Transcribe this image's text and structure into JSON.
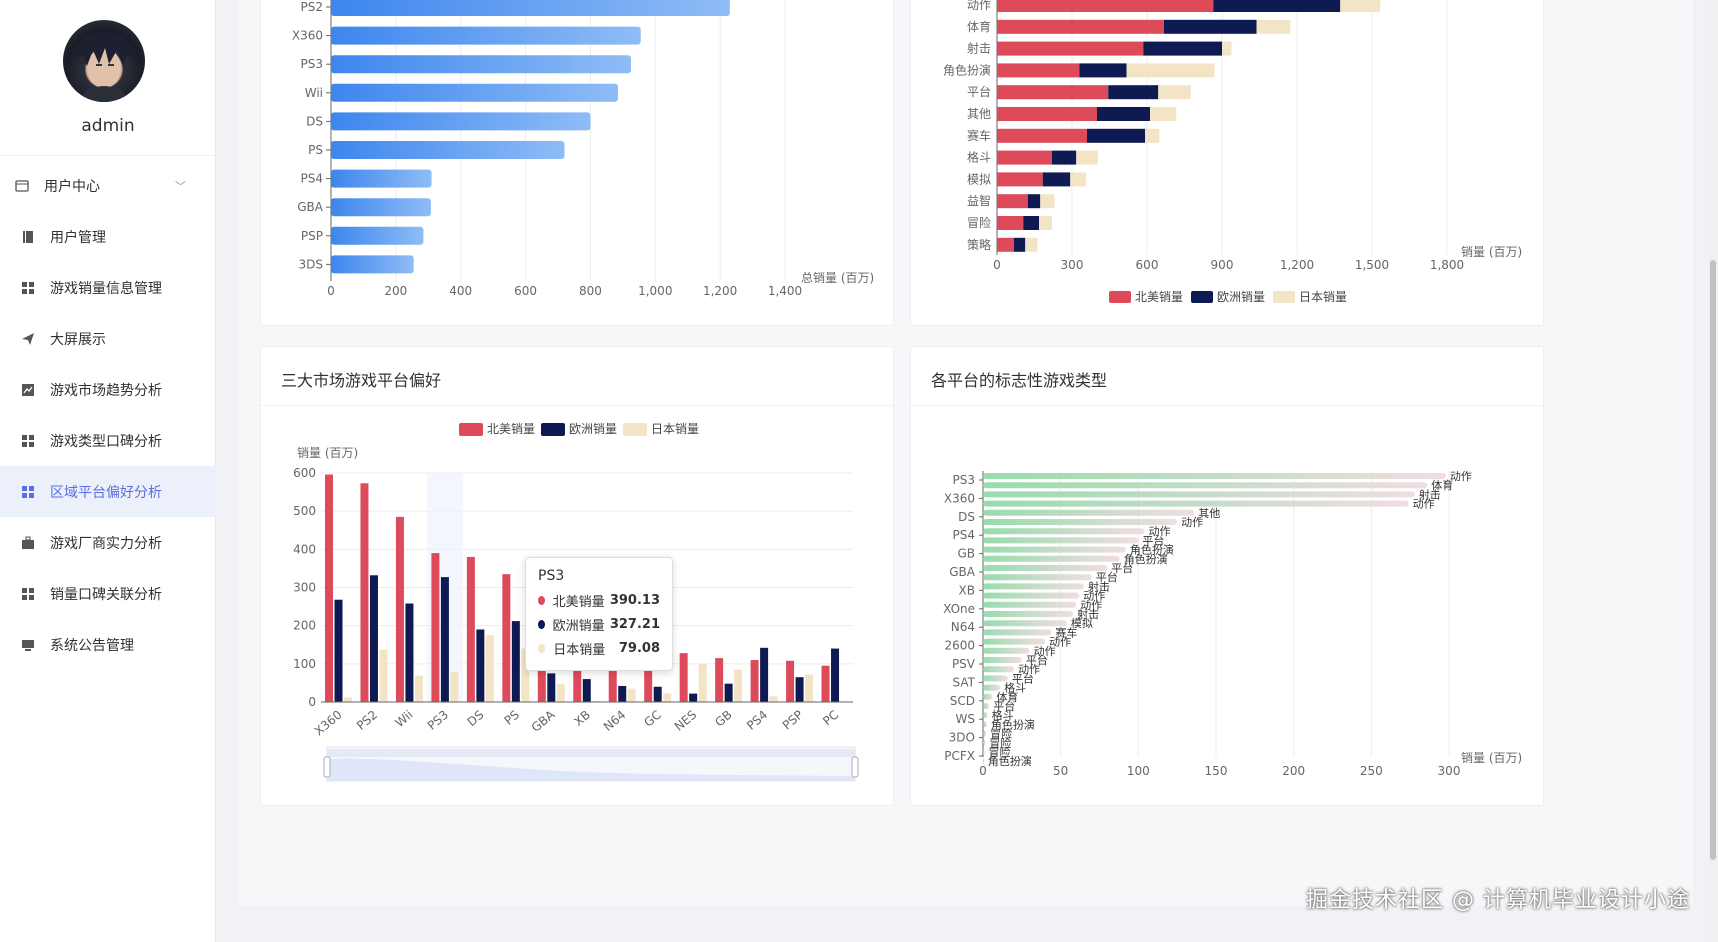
{
  "user": {
    "name": "admin"
  },
  "menu": [
    {
      "name": "user-center",
      "label": "用户中心",
      "icon": "card-icon",
      "sub": true
    },
    {
      "name": "user-manage",
      "label": "用户管理",
      "icon": "book-icon"
    },
    {
      "name": "sales-info",
      "label": "游戏销量信息管理",
      "icon": "grid-icon"
    },
    {
      "name": "big-screen",
      "label": "大屏展示",
      "icon": "send-icon"
    },
    {
      "name": "trend",
      "label": "游戏市场趋势分析",
      "icon": "line-chart-icon"
    },
    {
      "name": "genre-rating",
      "label": "游戏类型口碑分析",
      "icon": "grid-icon"
    },
    {
      "name": "region-platform",
      "label": "区域平台偏好分析",
      "icon": "grid-icon",
      "active": true
    },
    {
      "name": "publisher",
      "label": "游戏厂商实力分析",
      "icon": "briefcase-icon"
    },
    {
      "name": "sales-rating",
      "label": "销量口碑关联分析",
      "icon": "grid-icon"
    },
    {
      "name": "notice",
      "label": "系统公告管理",
      "icon": "monitor-icon"
    }
  ],
  "colors": {
    "na": "#dd4b5b",
    "eu": "#0e1b52",
    "jp": "#f3e4c5",
    "bar_start": "#3d86ee",
    "bar_end": "#8fbcf6"
  },
  "chart_data": [
    {
      "type": "bar",
      "orientation": "horizontal",
      "categories": [
        "PS2",
        "X360",
        "PS3",
        "Wii",
        "DS",
        "PS",
        "PS4",
        "GBA",
        "PSP",
        "3DS"
      ],
      "values": [
        1230,
        955,
        925,
        885,
        800,
        720,
        310,
        308,
        285,
        255
      ],
      "xlabel": "总销量 (百万)",
      "xticks": [
        0,
        200,
        400,
        600,
        800,
        1000,
        1200,
        1400
      ],
      "xtick_labels": [
        "0",
        "200",
        "400",
        "600",
        "800",
        "1,000",
        "1,200",
        "1,400"
      ],
      "xlim": [
        0,
        1400
      ]
    },
    {
      "type": "bar",
      "orientation": "horizontal",
      "stacked": true,
      "categories": [
        "动作",
        "体育",
        "射击",
        "角色扮演",
        "平台",
        "其他",
        "赛车",
        "格斗",
        "模拟",
        "益智",
        "冒险",
        "策略"
      ],
      "series": [
        {
          "name": "北美销量",
          "values": [
            865,
            668,
            585,
            330,
            445,
            400,
            360,
            220,
            183,
            123,
            105,
            68
          ]
        },
        {
          "name": "欧洲销量",
          "values": [
            508,
            370,
            315,
            188,
            200,
            212,
            232,
            97,
            110,
            50,
            63,
            45
          ]
        },
        {
          "name": "日本销量",
          "values": [
            160,
            135,
            38,
            352,
            130,
            105,
            57,
            87,
            63,
            57,
            52,
            49
          ]
        }
      ],
      "xlabel": "销量 (百万)",
      "xticks": [
        0,
        300,
        600,
        900,
        1200,
        1500,
        1800
      ],
      "xtick_labels": [
        "0",
        "300",
        "600",
        "900",
        "1,200",
        "1,500",
        "1,800"
      ],
      "xlim": [
        0,
        1800
      ],
      "legend": "bottom"
    },
    {
      "type": "bar",
      "title": "三大市场游戏平台偏好",
      "categories": [
        "X360",
        "PS2",
        "Wii",
        "PS3",
        "DS",
        "PS",
        "GBA",
        "XB",
        "N64",
        "GC",
        "NES",
        "GB",
        "PS4",
        "PSP",
        "PC"
      ],
      "series": [
        {
          "name": "北美销量",
          "values": [
            596,
            573,
            485,
            390.13,
            380,
            335,
            185,
            185,
            140,
            130,
            128,
            115,
            110,
            108,
            95
          ]
        },
        {
          "name": "欧洲销量",
          "values": [
            268,
            332,
            258,
            327.21,
            190,
            212,
            75,
            60,
            42,
            40,
            22,
            48,
            142,
            65,
            140
          ]
        },
        {
          "name": "日本销量",
          "values": [
            12,
            137,
            69,
            79.08,
            175,
            140,
            48,
            3,
            35,
            22,
            100,
            85,
            15,
            72,
            0
          ]
        }
      ],
      "ylabel": "销量 (百万)",
      "yticks": [
        0,
        100,
        200,
        300,
        400,
        500,
        600
      ],
      "ylim": [
        0,
        600
      ],
      "legend": "top",
      "tooltip": {
        "title": "PS3",
        "rows": [
          {
            "name": "北美销量",
            "value": "390.13"
          },
          {
            "name": "欧洲销量",
            "value": "327.21"
          },
          {
            "name": "日本销量",
            "value": "79.08"
          }
        ]
      }
    },
    {
      "type": "bar",
      "orientation": "horizontal",
      "title": "各平台的标志性游戏类型",
      "categories": [
        "PS3",
        "X360",
        "DS",
        "PS4",
        "GB",
        "GBA",
        "XB",
        "XOne",
        "N64",
        "2600",
        "PSV",
        "SAT",
        "SCD",
        "WS",
        "3DO",
        "PCFX"
      ],
      "bars": [
        {
          "platform": "PS3",
          "value": 298,
          "genre": "动作"
        },
        {
          "platform": "PS3",
          "value": 286,
          "genre": "体育"
        },
        {
          "platform": "X360",
          "value": 278,
          "genre": "射击"
        },
        {
          "platform": "X360",
          "value": 274,
          "genre": "动作"
        },
        {
          "platform": "DS",
          "value": 136,
          "genre": "其他"
        },
        {
          "platform": "DS",
          "value": 125,
          "genre": "动作"
        },
        {
          "platform": "PS4",
          "value": 104,
          "genre": "动作"
        },
        {
          "platform": "PS4",
          "value": 100,
          "genre": "平台"
        },
        {
          "platform": "GB",
          "value": 92,
          "genre": "角色扮演"
        },
        {
          "platform": "GB",
          "value": 88,
          "genre": "角色扮演"
        },
        {
          "platform": "GBA",
          "value": 80,
          "genre": "平台"
        },
        {
          "platform": "GBA",
          "value": 70,
          "genre": "平台"
        },
        {
          "platform": "XB",
          "value": 65,
          "genre": "射击"
        },
        {
          "platform": "XB",
          "value": 62,
          "genre": "动作"
        },
        {
          "platform": "XOne",
          "value": 60,
          "genre": "动作"
        },
        {
          "platform": "XOne",
          "value": 58,
          "genre": "射击"
        },
        {
          "platform": "N64",
          "value": 54,
          "genre": "模拟"
        },
        {
          "platform": "N64",
          "value": 44,
          "genre": "赛车"
        },
        {
          "platform": "2600",
          "value": 40,
          "genre": "动作"
        },
        {
          "platform": "2600",
          "value": 30,
          "genre": "动作"
        },
        {
          "platform": "PSV",
          "value": 25,
          "genre": "平台"
        },
        {
          "platform": "PSV",
          "value": 20,
          "genre": "动作"
        },
        {
          "platform": "SAT",
          "value": 16,
          "genre": "平台"
        },
        {
          "platform": "SAT",
          "value": 11,
          "genre": "格斗"
        },
        {
          "platform": "SCD",
          "value": 6,
          "genre": "体育"
        },
        {
          "platform": "SCD",
          "value": 4,
          "genre": "平台"
        },
        {
          "platform": "WS",
          "value": 3,
          "genre": "格斗"
        },
        {
          "platform": "WS",
          "value": 2.5,
          "genre": "角色扮演"
        },
        {
          "platform": "3DO",
          "value": 2,
          "genre": "冒险"
        },
        {
          "platform": "3DO",
          "value": 1.5,
          "genre": "冒险"
        },
        {
          "platform": "PCFX",
          "value": 1,
          "genre": "冒险"
        },
        {
          "platform": "PCFX",
          "value": 0.5,
          "genre": "角色扮演"
        }
      ],
      "xlabel": "销量 (百万)",
      "xticks": [
        0,
        50,
        100,
        150,
        200,
        250,
        300
      ],
      "xlim": [
        0,
        300
      ]
    }
  ],
  "watermark": "掘金技术社区 @ 计算机毕业设计小途"
}
